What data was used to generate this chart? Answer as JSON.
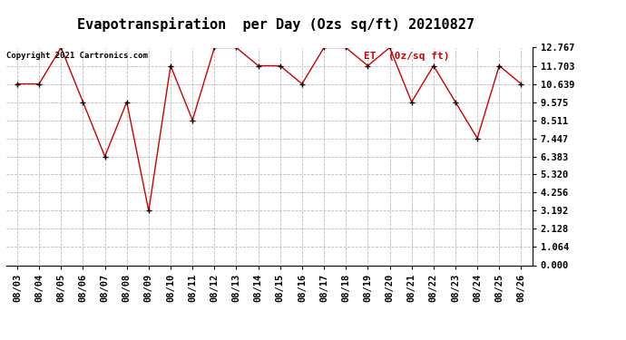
{
  "title": "Evapotranspiration  per Day (Ozs sq/ft) 20210827",
  "copyright_text": "Copyright 2021 Cartronics.com",
  "legend_label": "ET  (0z/sq ft)",
  "dates": [
    "08/03",
    "08/04",
    "08/05",
    "08/06",
    "08/07",
    "08/08",
    "08/09",
    "08/10",
    "08/11",
    "08/12",
    "08/13",
    "08/14",
    "08/15",
    "08/16",
    "08/17",
    "08/18",
    "08/19",
    "08/20",
    "08/21",
    "08/22",
    "08/23",
    "08/24",
    "08/25",
    "08/26"
  ],
  "values": [
    10.639,
    10.639,
    12.767,
    9.575,
    6.383,
    9.575,
    3.192,
    11.703,
    8.511,
    12.767,
    12.767,
    11.703,
    11.703,
    10.639,
    12.767,
    12.767,
    11.703,
    12.767,
    9.575,
    11.703,
    9.575,
    7.447,
    11.703,
    10.639
  ],
  "yticks": [
    0.0,
    1.064,
    2.128,
    3.192,
    4.256,
    5.32,
    6.383,
    7.447,
    8.511,
    9.575,
    10.639,
    11.703,
    12.767
  ],
  "ylim": [
    0.0,
    12.767
  ],
  "line_color": "#cc0000",
  "marker_color": "#000000",
  "grid_color": "#bbbbbb",
  "background_color": "#ffffff",
  "title_fontsize": 11,
  "tick_fontsize": 7.5,
  "copyright_fontsize": 6.5,
  "legend_fontsize": 8,
  "legend_color": "#cc0000"
}
